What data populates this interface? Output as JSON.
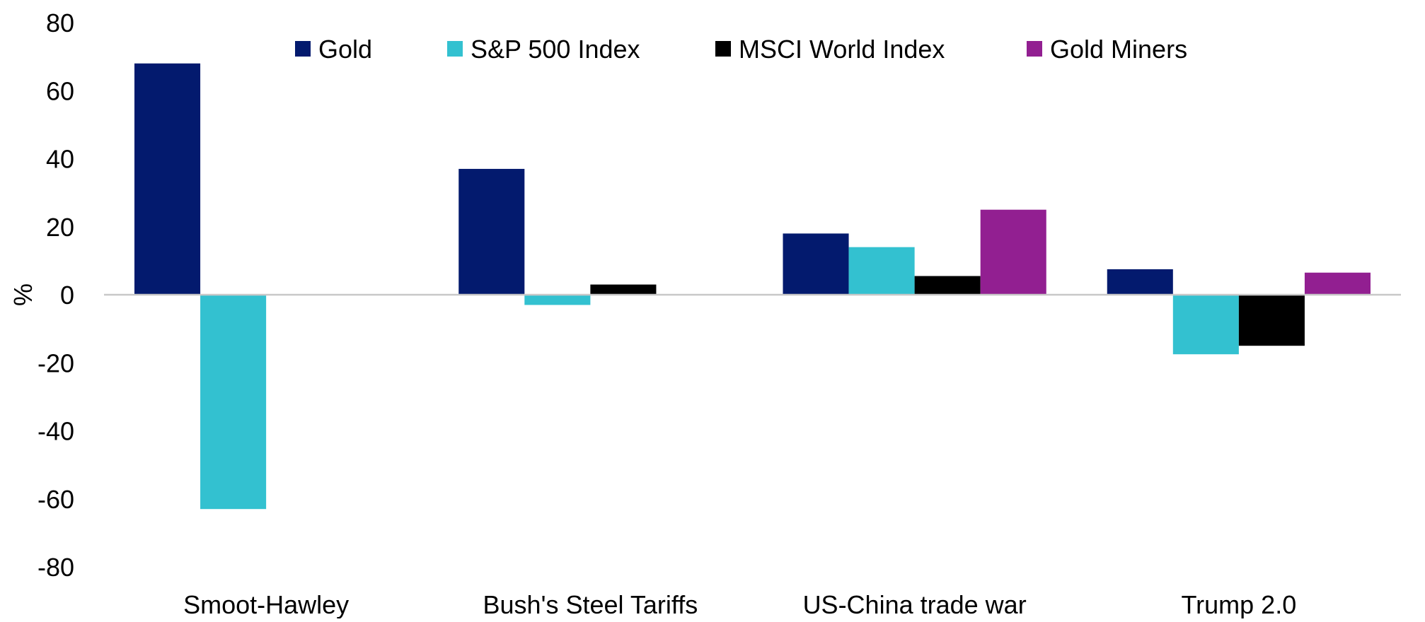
{
  "chart_data": {
    "type": "bar",
    "title": "",
    "xlabel": "",
    "ylabel": "%",
    "ylim": [
      -80,
      80
    ],
    "yticks": [
      80,
      60,
      40,
      20,
      0,
      -20,
      -40,
      -60,
      -80
    ],
    "grid": false,
    "legend_position": "top",
    "categories": [
      "Smoot-Hawley",
      "Bush's Steel Tariffs",
      "US-China trade war",
      "Trump 2.0"
    ],
    "series": [
      {
        "name": "Gold",
        "color": "#031A6E",
        "values": [
          68,
          37,
          18,
          7.5
        ]
      },
      {
        "name": "S&P 500 Index",
        "color": "#33C1D0",
        "values": [
          -63,
          -3,
          14,
          -17.5
        ]
      },
      {
        "name": "MSCI World Index",
        "color": "#000000",
        "values": [
          null,
          3,
          5.5,
          -15
        ]
      },
      {
        "name": "Gold Miners",
        "color": "#921F91",
        "values": [
          null,
          null,
          25,
          6.5
        ]
      }
    ]
  }
}
